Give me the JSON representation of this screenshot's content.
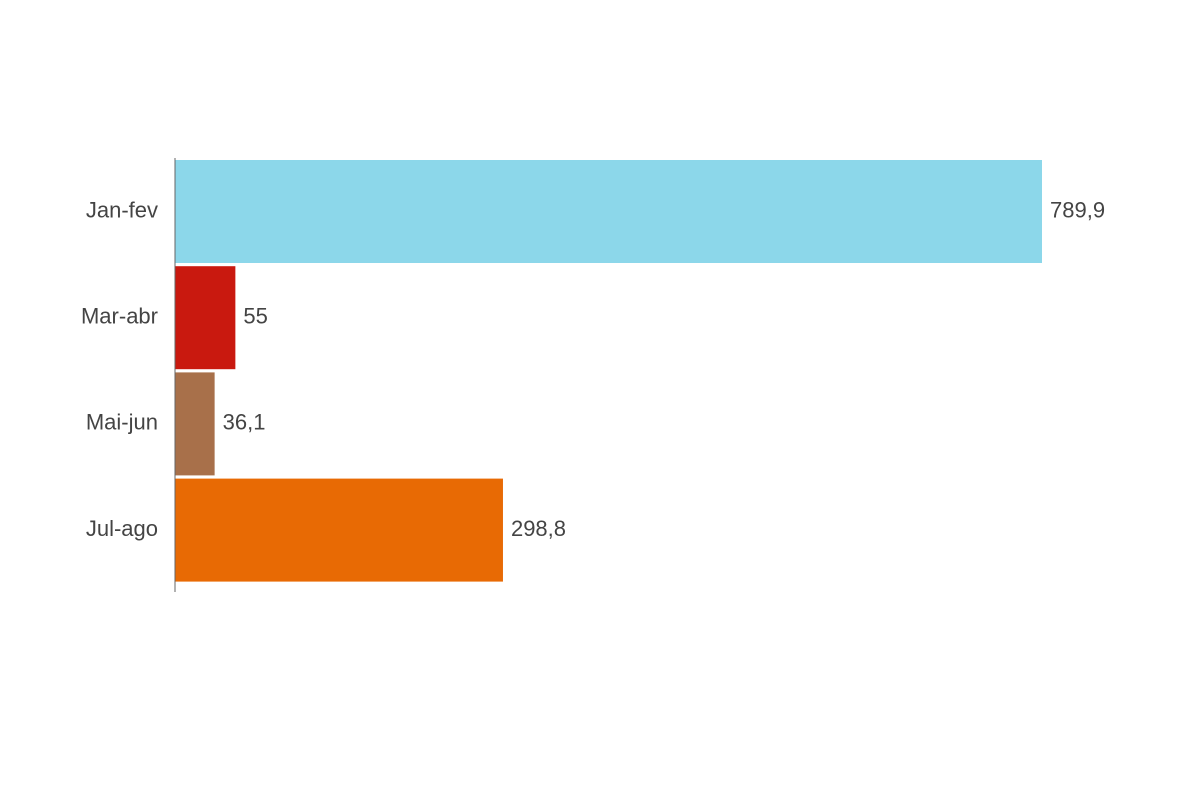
{
  "chart_data": {
    "type": "bar",
    "orientation": "horizontal",
    "categories": [
      "Jan-fev",
      "Mar-abr",
      "Mai-jun",
      "Jul-ago"
    ],
    "values": [
      789.9,
      55,
      36.1,
      298.8
    ],
    "value_labels": [
      "789,9",
      "55",
      "36,1",
      "298,8"
    ],
    "colors": [
      "#8cd7ea",
      "#c9190f",
      "#a8704a",
      "#e86a04"
    ]
  }
}
